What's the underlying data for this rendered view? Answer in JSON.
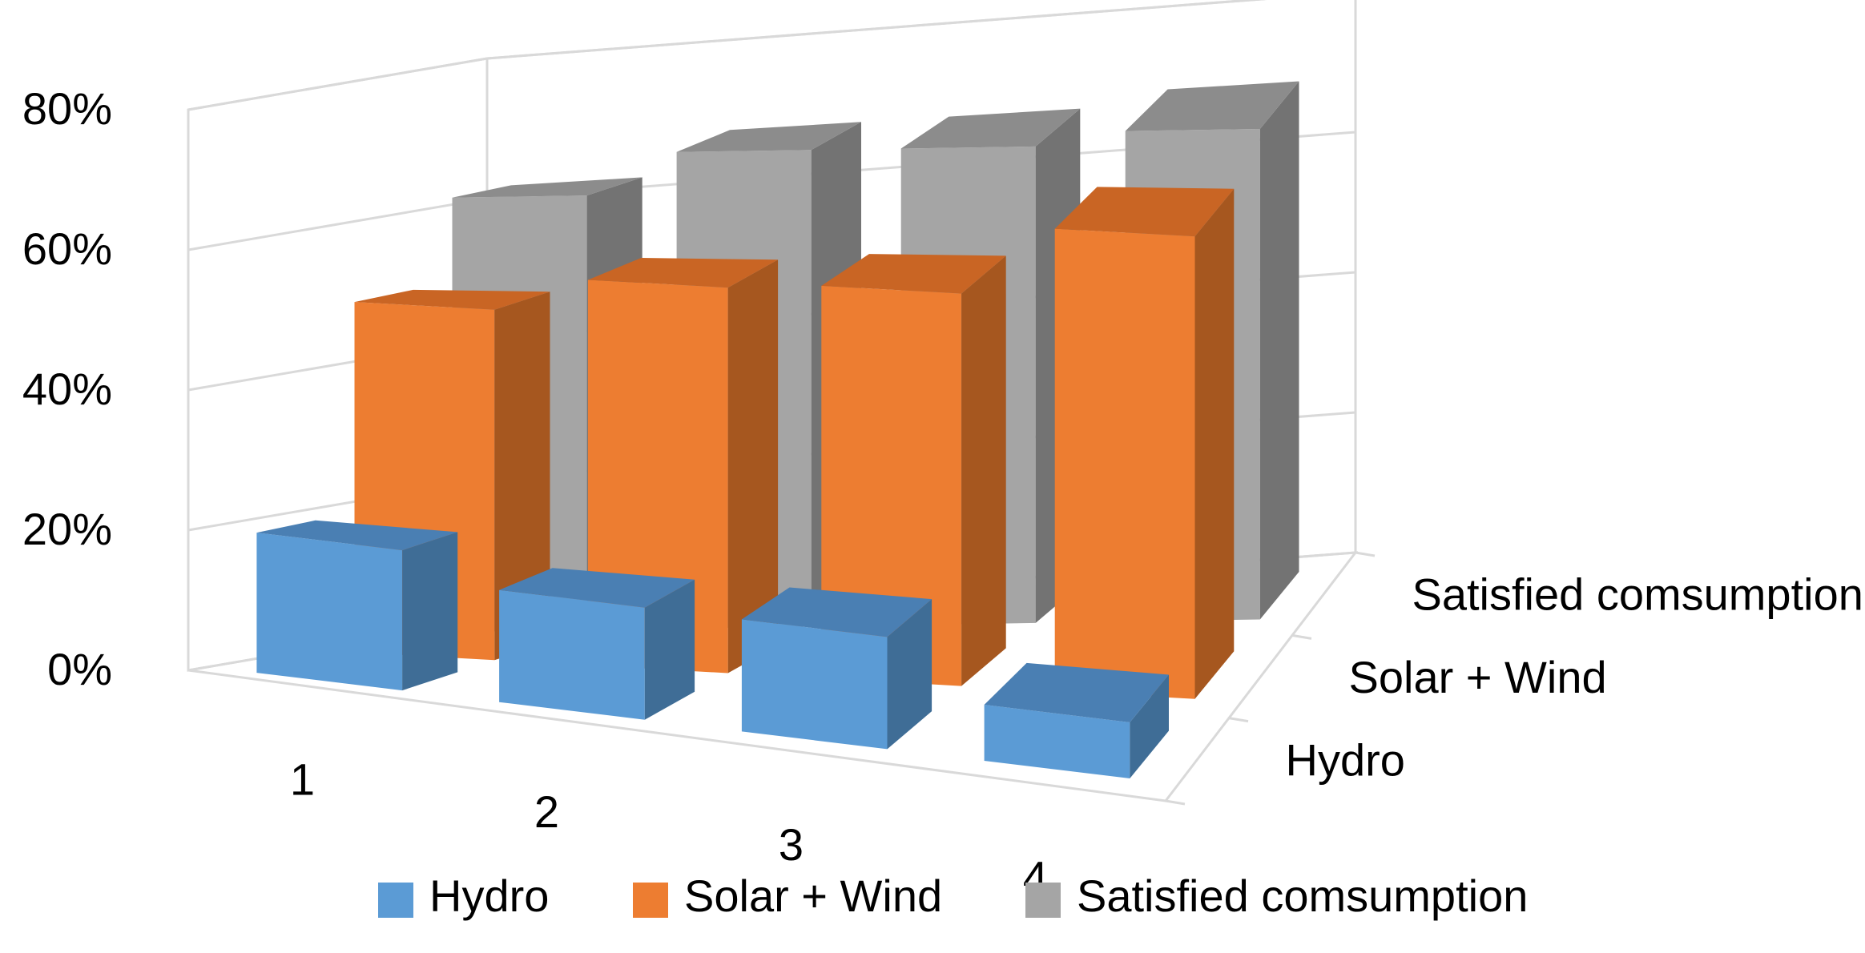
{
  "chart_data": {
    "type": "bar",
    "variant": "3d-column",
    "title": "",
    "xlabel": "",
    "ylabel": "",
    "categories": [
      "1",
      "2",
      "3",
      "4"
    ],
    "ylim": [
      0,
      0.8
    ],
    "yticks": [
      0,
      0.2,
      0.4,
      0.6,
      0.8
    ],
    "ytick_labels": [
      "0%",
      "20%",
      "40%",
      "60%",
      "80%"
    ],
    "grid": true,
    "legend_position": "bottom",
    "series": [
      {
        "name": "Hydro",
        "values": [
          0.2,
          0.16,
          0.16,
          0.08
        ],
        "color": "#5b9bd5",
        "side_color": "#3f6d96",
        "top_color": "#4a7fb3"
      },
      {
        "name": "Solar + Wind",
        "values": [
          0.5,
          0.55,
          0.56,
          0.66
        ],
        "color": "#ed7d31",
        "side_color": "#a6571f",
        "top_color": "#c96524"
      },
      {
        "name": "Satisfied comsumption",
        "values": [
          0.62,
          0.68,
          0.68,
          0.7
        ],
        "color": "#a5a5a5",
        "side_color": "#737373",
        "top_color": "#8c8c8c"
      }
    ],
    "series_axis_labels": [
      "Hydro",
      "Solar + Wind",
      "Satisfied comsumption"
    ]
  }
}
